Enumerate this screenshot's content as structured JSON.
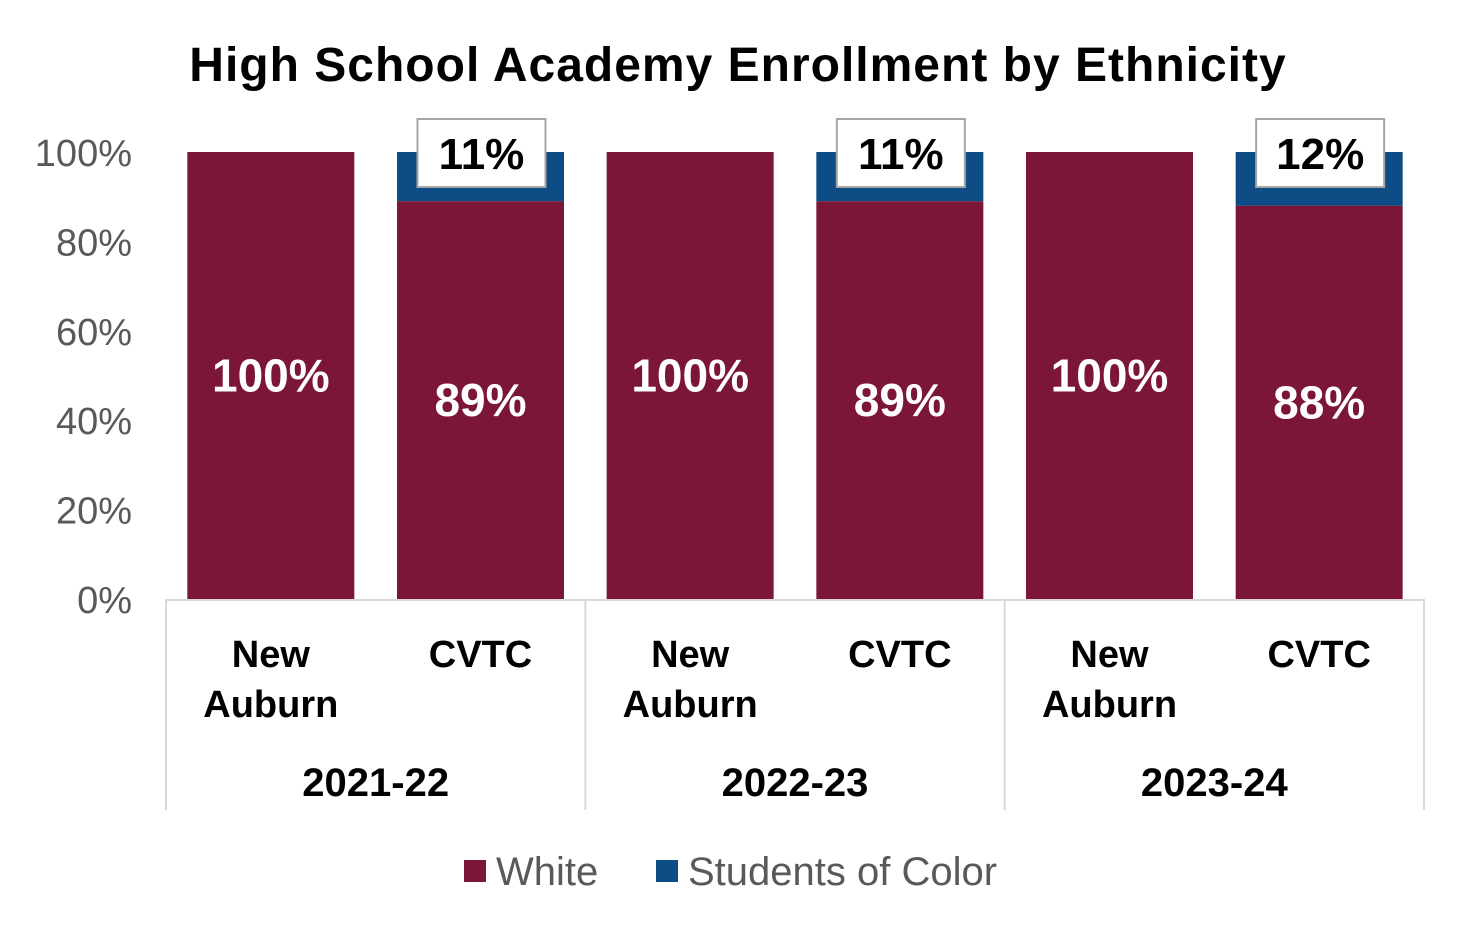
{
  "chart_data": {
    "type": "bar",
    "stacked": true,
    "title": "High School Academy Enrollment by Ethnicity",
    "groups": [
      "2021-22",
      "2022-23",
      "2023-24"
    ],
    "categories": [
      "New Auburn",
      "CVTC",
      "New Auburn",
      "CVTC",
      "New Auburn",
      "CVTC"
    ],
    "group_of_category": [
      0,
      0,
      1,
      1,
      2,
      2
    ],
    "series": [
      {
        "name": "White",
        "color": "#7b1638",
        "values": [
          100,
          89,
          100,
          89,
          100,
          88
        ]
      },
      {
        "name": "Students of Color",
        "color": "#0e4c85",
        "values": [
          0,
          11,
          0,
          11,
          0,
          12
        ]
      }
    ],
    "data_labels": {
      "White": [
        "100%",
        "89%",
        "100%",
        "89%",
        "100%",
        "88%"
      ],
      "Students of Color": [
        "",
        "11%",
        "",
        "11%",
        "",
        "12%"
      ]
    },
    "yticks": [
      "0%",
      "20%",
      "40%",
      "60%",
      "80%",
      "100%"
    ],
    "ylim": [
      0,
      100
    ],
    "legend_position": "bottom",
    "grid": false
  }
}
